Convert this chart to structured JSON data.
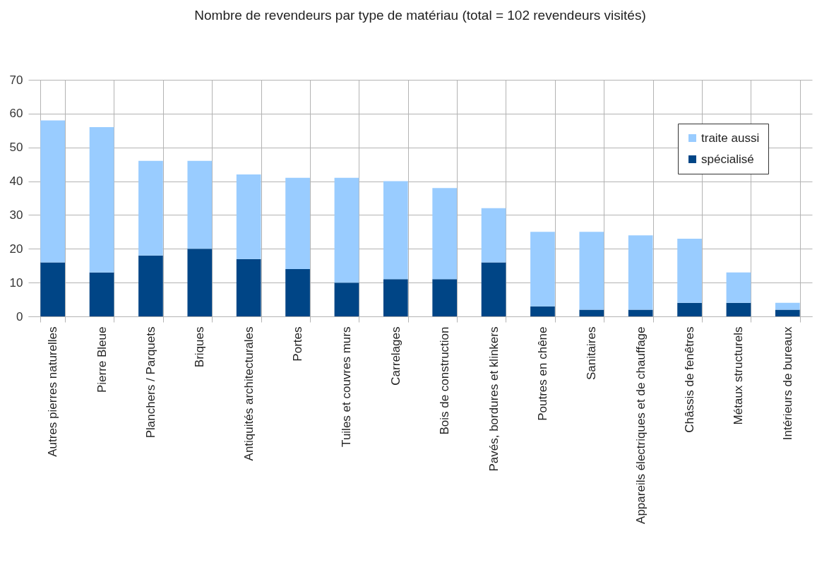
{
  "chart_data": {
    "type": "bar",
    "title": "Nombre de revendeurs par type de matériau (total = 102 revendeurs visités)",
    "categories": [
      "Autres pierres naturelles",
      "Pierre Bleue",
      "Planchers / Parquets",
      "Briques",
      "Antiquités architecturales",
      "Portes",
      "Tuiles et couvres murs",
      "Carrelages",
      "Bois de construction",
      "Pavés, bordures et klinkers",
      "Poutres en chêne",
      "Sanitaires",
      "Appareils électriques et de chauffage",
      "Châssis de fenêtres",
      "Métaux structurels",
      "Intérieurs de bureaux"
    ],
    "series": [
      {
        "name": "spécialisé",
        "color": "#004586",
        "values": [
          16,
          13,
          18,
          20,
          17,
          14,
          10,
          11,
          11,
          16,
          3,
          2,
          2,
          4,
          4,
          2
        ]
      },
      {
        "name": "traite aussi",
        "color": "#99ccff",
        "values": [
          42,
          43,
          28,
          26,
          25,
          27,
          31,
          29,
          27,
          16,
          22,
          23,
          22,
          19,
          9,
          2
        ]
      }
    ],
    "stacked": true,
    "ylim": [
      0,
      70
    ],
    "yticks": [
      0,
      10,
      20,
      30,
      40,
      50,
      60,
      70
    ],
    "grid": "y",
    "legend": "top right"
  }
}
